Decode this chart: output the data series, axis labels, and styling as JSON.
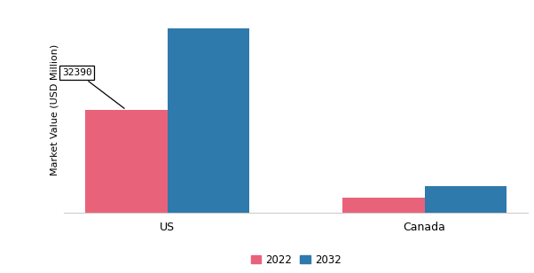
{
  "categories": [
    "US",
    "Canada"
  ],
  "values_2022": [
    32390,
    4800
  ],
  "values_2032": [
    58000,
    8500
  ],
  "color_2022": "#e8637a",
  "color_2032": "#2e7aac",
  "ylabel": "Market Value (USD Million)",
  "annotation_label": "32390",
  "legend_labels": [
    "2022",
    "2032"
  ],
  "bar_width": 0.32,
  "ylim": [
    0,
    65000
  ],
  "background_color": "#ffffff"
}
